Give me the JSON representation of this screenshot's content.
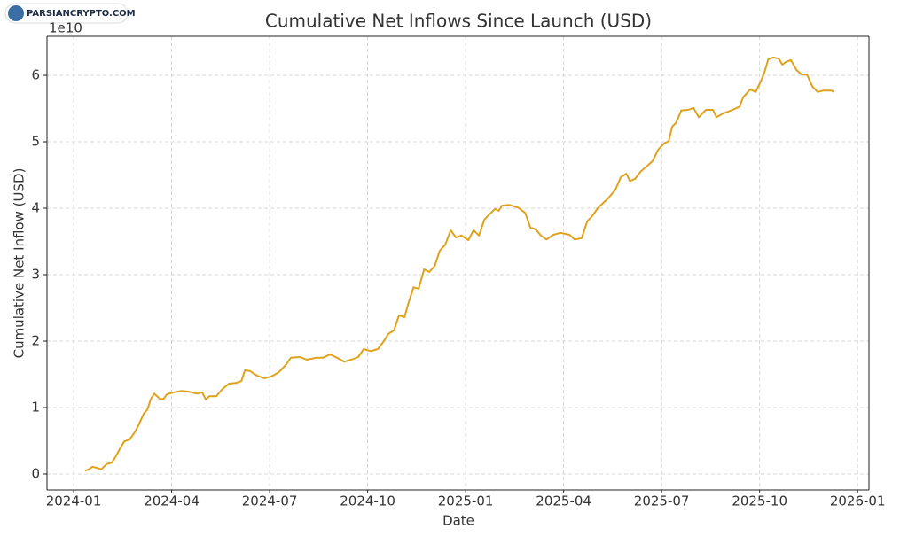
{
  "watermark": "PARSIANCRYPTO.COM",
  "chart_data": {
    "type": "line",
    "title": "Cumulative Net Inflows Since Launch (USD)",
    "x_label": "Date",
    "y_label": "Cumulative Net Inflow (USD)",
    "y_offset_label": "1e10",
    "color": "#e0a21c",
    "grid": true,
    "x": [
      2024.029,
      2024.038,
      2024.048,
      2024.061,
      2024.07,
      2024.084,
      2024.097,
      2024.106,
      2024.12,
      2024.129,
      2024.143,
      2024.156,
      2024.165,
      2024.179,
      2024.188,
      2024.197,
      2024.206,
      2024.22,
      2024.229,
      2024.238,
      2024.256,
      2024.274,
      2024.292,
      2024.315,
      2024.328,
      2024.337,
      2024.346,
      2024.364,
      2024.378,
      2024.396,
      2024.414,
      2024.428,
      2024.437,
      2024.45,
      2024.468,
      2024.486,
      2024.505,
      2024.523,
      2024.541,
      2024.554,
      2024.577,
      2024.595,
      2024.618,
      2024.636,
      2024.654,
      2024.672,
      2024.69,
      2024.708,
      2024.726,
      2024.74,
      2024.758,
      2024.776,
      2024.79,
      2024.803,
      2024.817,
      2024.83,
      2024.844,
      2024.853,
      2024.867,
      2024.88,
      2024.894,
      2024.907,
      2024.921,
      2024.934,
      2024.948,
      2024.962,
      2024.975,
      2024.989,
      2025.007,
      2025.02,
      2025.034,
      2025.048,
      2025.061,
      2025.075,
      2025.084,
      2025.093,
      2025.111,
      2025.134,
      2025.152,
      2025.165,
      2025.179,
      2025.192,
      2025.206,
      2025.224,
      2025.242,
      2025.265,
      2025.278,
      2025.296,
      2025.31,
      2025.324,
      2025.337,
      2025.351,
      2025.364,
      2025.382,
      2025.396,
      2025.41,
      2025.419,
      2025.432,
      2025.446,
      2025.464,
      2025.477,
      2025.491,
      2025.505,
      2025.518,
      2025.527,
      2025.536,
      2025.55,
      2025.568,
      2025.581,
      2025.595,
      2025.613,
      2025.631,
      2025.64,
      2025.658,
      2025.681,
      2025.699,
      2025.708,
      2025.726,
      2025.74,
      2025.753,
      2025.762,
      2025.772,
      2025.785,
      2025.799,
      2025.808,
      2025.817,
      2025.83,
      2025.844,
      2025.858,
      2025.871,
      2025.885,
      2025.898,
      2025.912,
      2025.934,
      2025.939
    ],
    "values": [
      0.05,
      0.07,
      0.11,
      0.09,
      0.07,
      0.15,
      0.17,
      0.25,
      0.4,
      0.49,
      0.52,
      0.63,
      0.73,
      0.91,
      0.97,
      1.13,
      1.21,
      1.13,
      1.13,
      1.2,
      1.23,
      1.25,
      1.24,
      1.21,
      1.23,
      1.12,
      1.17,
      1.17,
      1.27,
      1.36,
      1.37,
      1.4,
      1.56,
      1.55,
      1.48,
      1.44,
      1.47,
      1.53,
      1.64,
      1.75,
      1.76,
      1.72,
      1.75,
      1.75,
      1.8,
      1.75,
      1.69,
      1.72,
      1.76,
      1.88,
      1.85,
      1.88,
      1.99,
      2.11,
      2.16,
      2.39,
      2.36,
      2.55,
      2.81,
      2.79,
      3.08,
      3.04,
      3.13,
      3.36,
      3.45,
      3.67,
      3.56,
      3.59,
      3.52,
      3.67,
      3.59,
      3.83,
      3.91,
      3.99,
      3.96,
      4.04,
      4.05,
      4.01,
      3.93,
      3.71,
      3.68,
      3.59,
      3.53,
      3.6,
      3.63,
      3.6,
      3.53,
      3.55,
      3.8,
      3.89,
      4.0,
      4.08,
      4.15,
      4.28,
      4.47,
      4.52,
      4.41,
      4.44,
      4.55,
      4.64,
      4.71,
      4.88,
      4.97,
      5.01,
      5.23,
      5.28,
      5.47,
      5.48,
      5.51,
      5.37,
      5.48,
      5.48,
      5.37,
      5.43,
      5.48,
      5.53,
      5.67,
      5.79,
      5.75,
      5.91,
      6.04,
      6.24,
      6.27,
      6.25,
      6.16,
      6.2,
      6.23,
      6.08,
      6.01,
      6.01,
      5.83,
      5.75,
      5.77,
      5.77,
      5.75
    ],
    "xlim": [
      2023.932,
      2026.029
    ],
    "xticks": [
      {
        "value": 2024,
        "label": "2024-01"
      },
      {
        "value": 2024.25,
        "label": "2024-04"
      },
      {
        "value": 2024.5,
        "label": "2024-07"
      },
      {
        "value": 2024.75,
        "label": "2024-10"
      },
      {
        "value": 2025,
        "label": "2025-01"
      },
      {
        "value": 2025.25,
        "label": "2025-04"
      },
      {
        "value": 2025.5,
        "label": "2025-07"
      },
      {
        "value": 2025.75,
        "label": "2025-10"
      },
      {
        "value": 2026,
        "label": "2026-01"
      }
    ],
    "ylim": [
      -0.24,
      6.587
    ],
    "yticks": [
      0,
      1,
      2,
      3,
      4,
      5,
      6
    ]
  }
}
